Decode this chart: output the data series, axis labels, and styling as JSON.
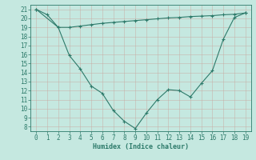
{
  "x": [
    0,
    1,
    2,
    3,
    4,
    5,
    6,
    7,
    8,
    9,
    10,
    11,
    12,
    13,
    14,
    15,
    16,
    17,
    18,
    19
  ],
  "line1": [
    21.0,
    20.4,
    19.0,
    19.0,
    19.15,
    19.3,
    19.45,
    19.55,
    19.65,
    19.75,
    19.85,
    19.95,
    20.05,
    20.1,
    20.2,
    20.25,
    20.3,
    20.4,
    20.45,
    20.6
  ],
  "line2": [
    21.0,
    null,
    19.0,
    15.9,
    14.4,
    12.5,
    11.7,
    9.8,
    8.6,
    7.8,
    9.5,
    11.0,
    12.1,
    12.0,
    11.3,
    12.8,
    14.2,
    17.7,
    20.1,
    20.6
  ],
  "line_color": "#2d7a6a",
  "bg_color": "#c5e8e0",
  "grid_major_color": "#b0cec8",
  "grid_minor_color": "#d0e8e0",
  "xlabel": "Humidex (Indice chaleur)",
  "xlim": [
    -0.5,
    19.5
  ],
  "ylim": [
    7.5,
    21.5
  ],
  "yticks": [
    8,
    9,
    10,
    11,
    12,
    13,
    14,
    15,
    16,
    17,
    18,
    19,
    20,
    21
  ],
  "xticks": [
    0,
    1,
    2,
    3,
    4,
    5,
    6,
    7,
    8,
    9,
    10,
    11,
    12,
    13,
    14,
    15,
    16,
    17,
    18,
    19
  ],
  "marker": "+",
  "markersize": 3,
  "linewidth": 0.8,
  "tick_fontsize": 5.5,
  "xlabel_fontsize": 6.0
}
